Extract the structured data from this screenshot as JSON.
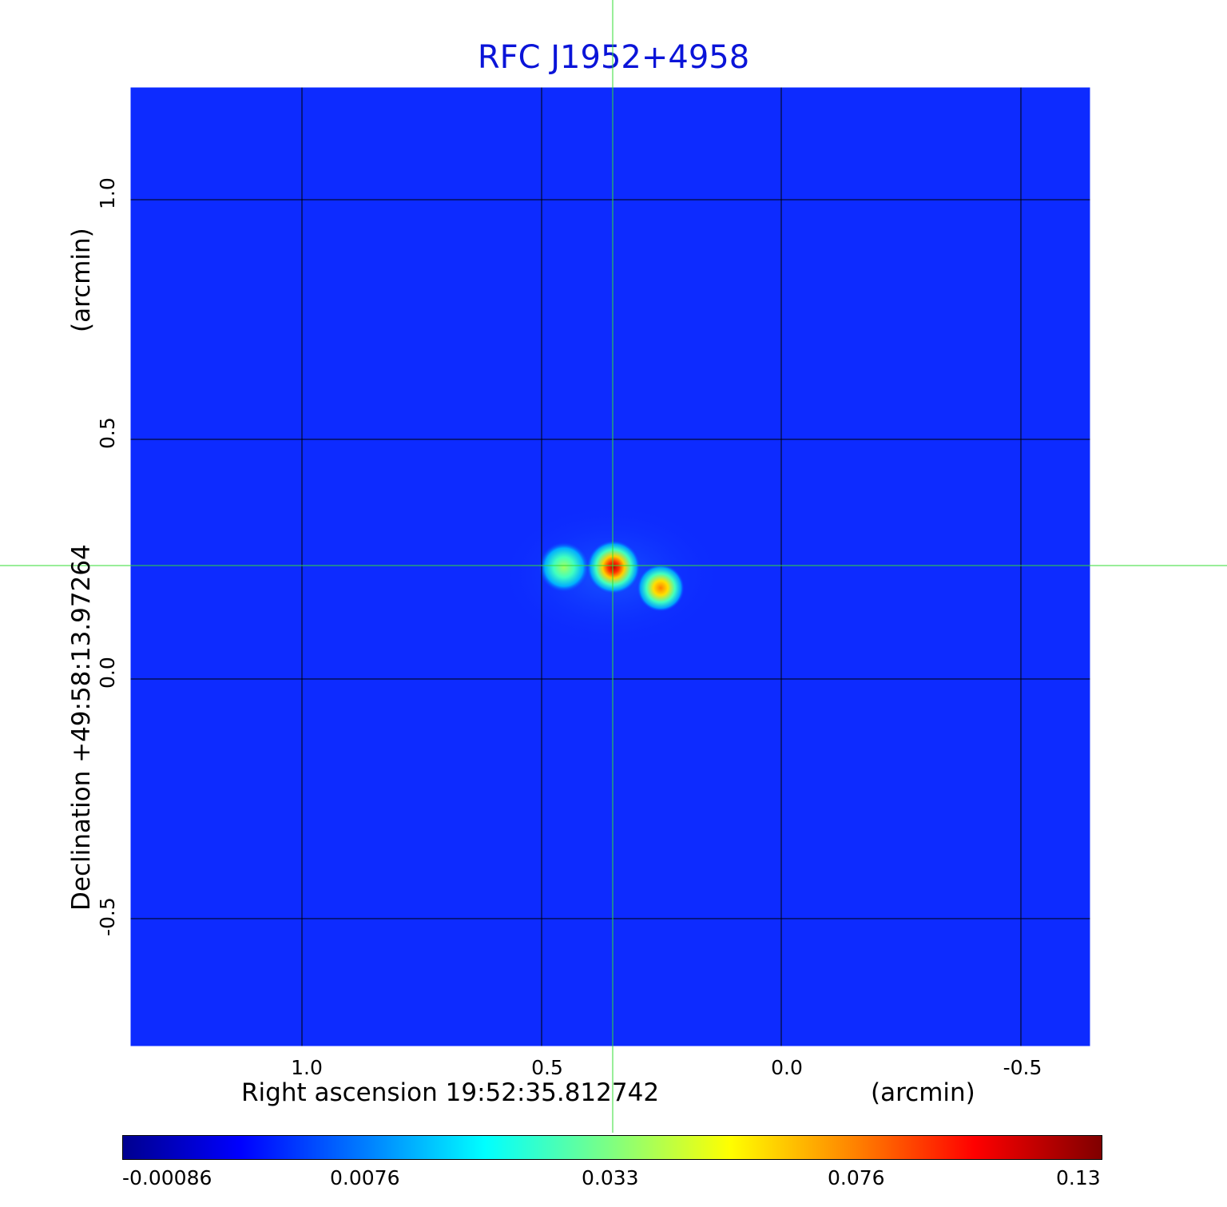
{
  "title": "RFC J1952+4958",
  "axes": {
    "x_label": "Right ascension  19:52:35.812742",
    "x_unit": "(arcmin)",
    "y_label": "Declination  +49:58:13.97264",
    "y_unit": "(arcmin)",
    "x_ticks": [
      "1.0",
      "0.5",
      "0.0",
      "-0.5"
    ],
    "y_ticks": [
      "1.0",
      "0.5",
      "0.0",
      "-0.5"
    ]
  },
  "colorbar": {
    "tick_labels": [
      "-0.00086",
      "0.0076",
      "0.033",
      "0.076",
      "0.13"
    ],
    "colormap": "jet"
  },
  "colors": {
    "title": "#0a14d8",
    "background_field": "#0d2bff",
    "crosshair": "#33dd33",
    "grid": "#000000"
  }
}
